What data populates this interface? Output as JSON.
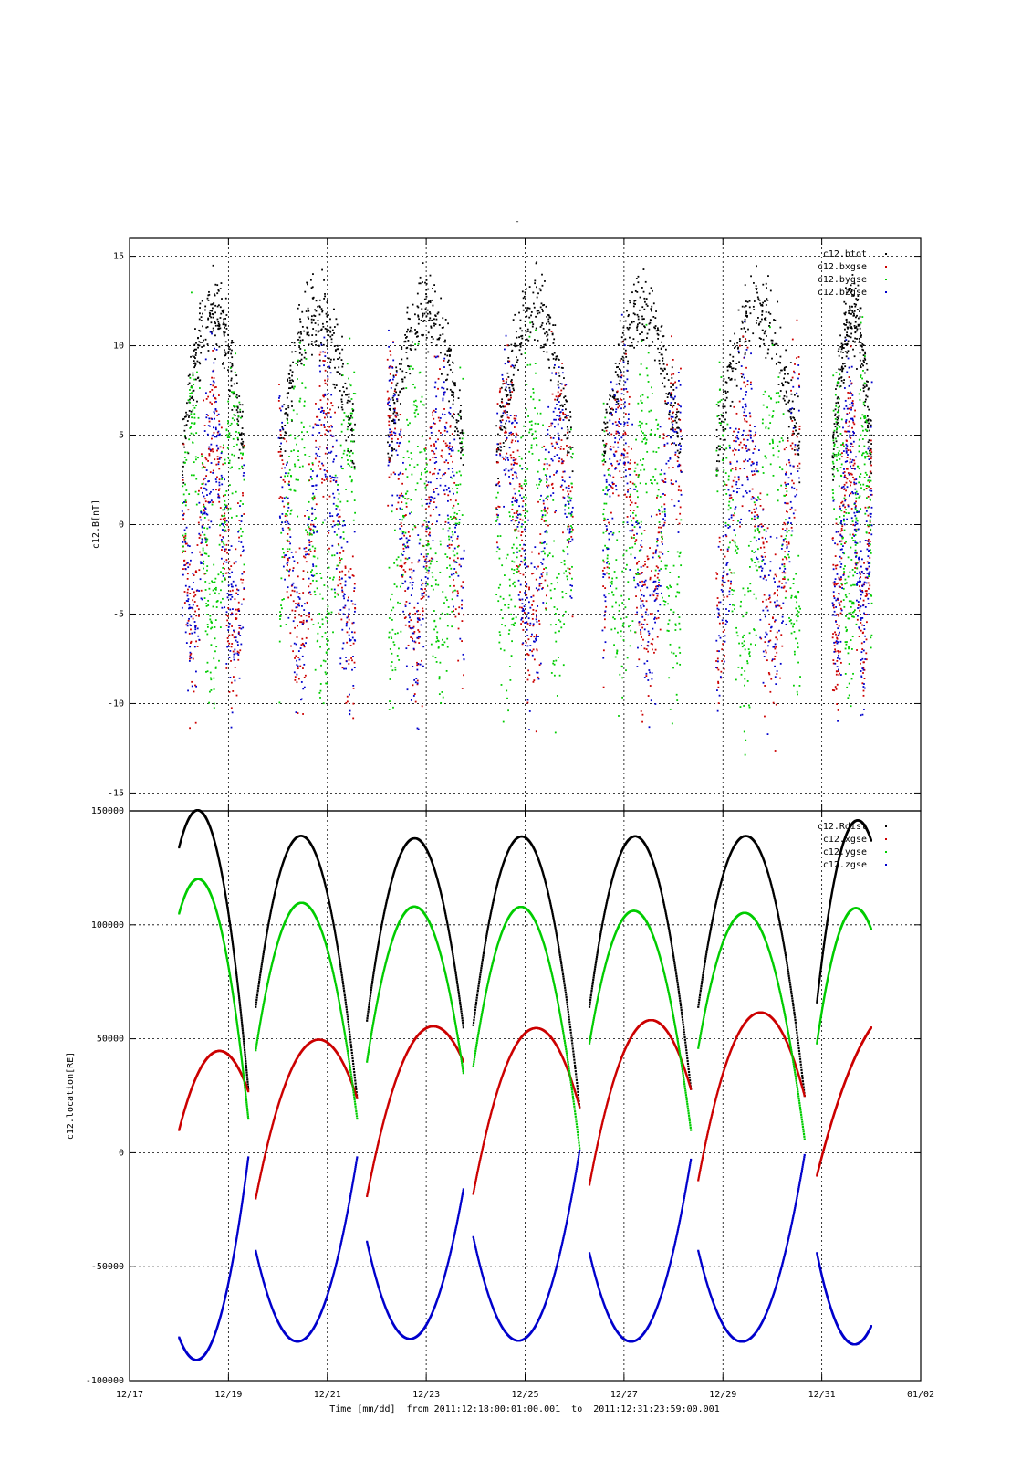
{
  "title": "-",
  "footer": {
    "time_label": "Time [mm/dd]  from 2011:12:18:00:01:00.001  to  2011:12:31:23:59:00.001"
  },
  "x_axis": {
    "range": [
      "12/17",
      "01/02"
    ],
    "tick_labels": [
      "12/17",
      "12/19",
      "12/21",
      "12/23",
      "12/25",
      "12/27",
      "12/29",
      "12/31",
      "01/02"
    ],
    "tick_days": [
      0,
      2,
      4,
      6,
      8,
      10,
      12,
      14,
      16
    ],
    "data_start_day": 1.0,
    "data_end_day": 15.0
  },
  "colors": {
    "black": "#000000",
    "red": "#cc0000",
    "green": "#00cc00",
    "blue": "#0000cc"
  },
  "chart_data": [
    {
      "type": "scatter",
      "ylabel": "c12.B[nT]",
      "ylim": [
        -16,
        16
      ],
      "yticks": [
        15,
        10,
        5,
        0,
        -5,
        -10,
        -15
      ],
      "grid": true,
      "legend_position": "top-right",
      "series": [
        {
          "name": "c12.btot",
          "color": "#000000",
          "y_range": [
            0,
            16
          ]
        },
        {
          "name": "c12.bxgse",
          "color": "#cc0000",
          "y_range": [
            -16,
            16
          ]
        },
        {
          "name": "c12.bygse",
          "color": "#00cc00",
          "y_range": [
            -16,
            16
          ]
        },
        {
          "name": "c12.bzgse",
          "color": "#0000cc",
          "y_range": [
            -16,
            16
          ]
        }
      ],
      "data_windows_days": [
        [
          1.05,
          2.3
        ],
        [
          3.0,
          4.55
        ],
        [
          5.2,
          6.75
        ],
        [
          7.4,
          8.95
        ],
        [
          9.55,
          11.15
        ],
        [
          11.85,
          13.55
        ],
        [
          14.2,
          15.0
        ]
      ]
    },
    {
      "type": "scatter",
      "ylabel": "c12.location[RE]",
      "ylim": [
        -100000,
        150000
      ],
      "yticks": [
        150000,
        100000,
        50000,
        0,
        -50000,
        -100000
      ],
      "grid": true,
      "legend_position": "top-right",
      "series": [
        {
          "name": "c12.Rdist",
          "color": "#000000"
        },
        {
          "name": "c12.xgse",
          "color": "#cc0000"
        },
        {
          "name": "c12.ygse",
          "color": "#00cc00"
        },
        {
          "name": "c12.zgse",
          "color": "#0000cc"
        }
      ],
      "orbit_segments": [
        {
          "start_day": 1.0,
          "end_day": 2.4,
          "rdist": [
            134000,
            138000,
            28000
          ],
          "xgse": [
            10000,
            44000,
            27000
          ],
          "ygse": [
            105000,
            110000,
            15000
          ],
          "zgse": [
            -81000,
            -81000,
            -2000
          ]
        },
        {
          "start_day": 2.55,
          "end_day": 4.6,
          "rdist": [
            64000,
            138000,
            24000
          ],
          "xgse": [
            -20000,
            47000,
            24000
          ],
          "ygse": [
            45000,
            109000,
            15000
          ],
          "zgse": [
            -43000,
            -81000,
            -2000
          ]
        },
        {
          "start_day": 4.8,
          "end_day": 6.75,
          "rdist": [
            58000,
            138000,
            55000
          ],
          "xgse": [
            -19000,
            50000,
            40000
          ],
          "ygse": [
            40000,
            108000,
            35000
          ],
          "zgse": [
            -39000,
            -81000,
            -16000
          ]
        },
        {
          "start_day": 6.95,
          "end_day": 9.1,
          "rdist": [
            56000,
            138000,
            20000
          ],
          "xgse": [
            -18000,
            53000,
            20000
          ],
          "ygse": [
            38000,
            107000,
            2000
          ],
          "zgse": [
            -37000,
            -81000,
            1000
          ]
        },
        {
          "start_day": 9.3,
          "end_day": 11.35,
          "rdist": [
            64000,
            138000,
            28000
          ],
          "xgse": [
            -14000,
            56000,
            28000
          ],
          "ygse": [
            48000,
            105000,
            10000
          ],
          "zgse": [
            -44000,
            -81000,
            -3000
          ]
        },
        {
          "start_day": 11.5,
          "end_day": 13.65,
          "rdist": [
            64000,
            138000,
            25000
          ],
          "xgse": [
            -12000,
            60000,
            25000
          ],
          "ygse": [
            46000,
            104000,
            6000
          ],
          "zgse": [
            -43000,
            -81000,
            -1000
          ]
        },
        {
          "start_day": 13.9,
          "end_day": 15.0,
          "rdist": [
            66000,
            137000,
            137000
          ],
          "xgse": [
            -10000,
            30000,
            55000
          ],
          "ygse": [
            48000,
            102000,
            98000
          ],
          "zgse": [
            -44000,
            -81000,
            -76000
          ]
        }
      ]
    }
  ]
}
